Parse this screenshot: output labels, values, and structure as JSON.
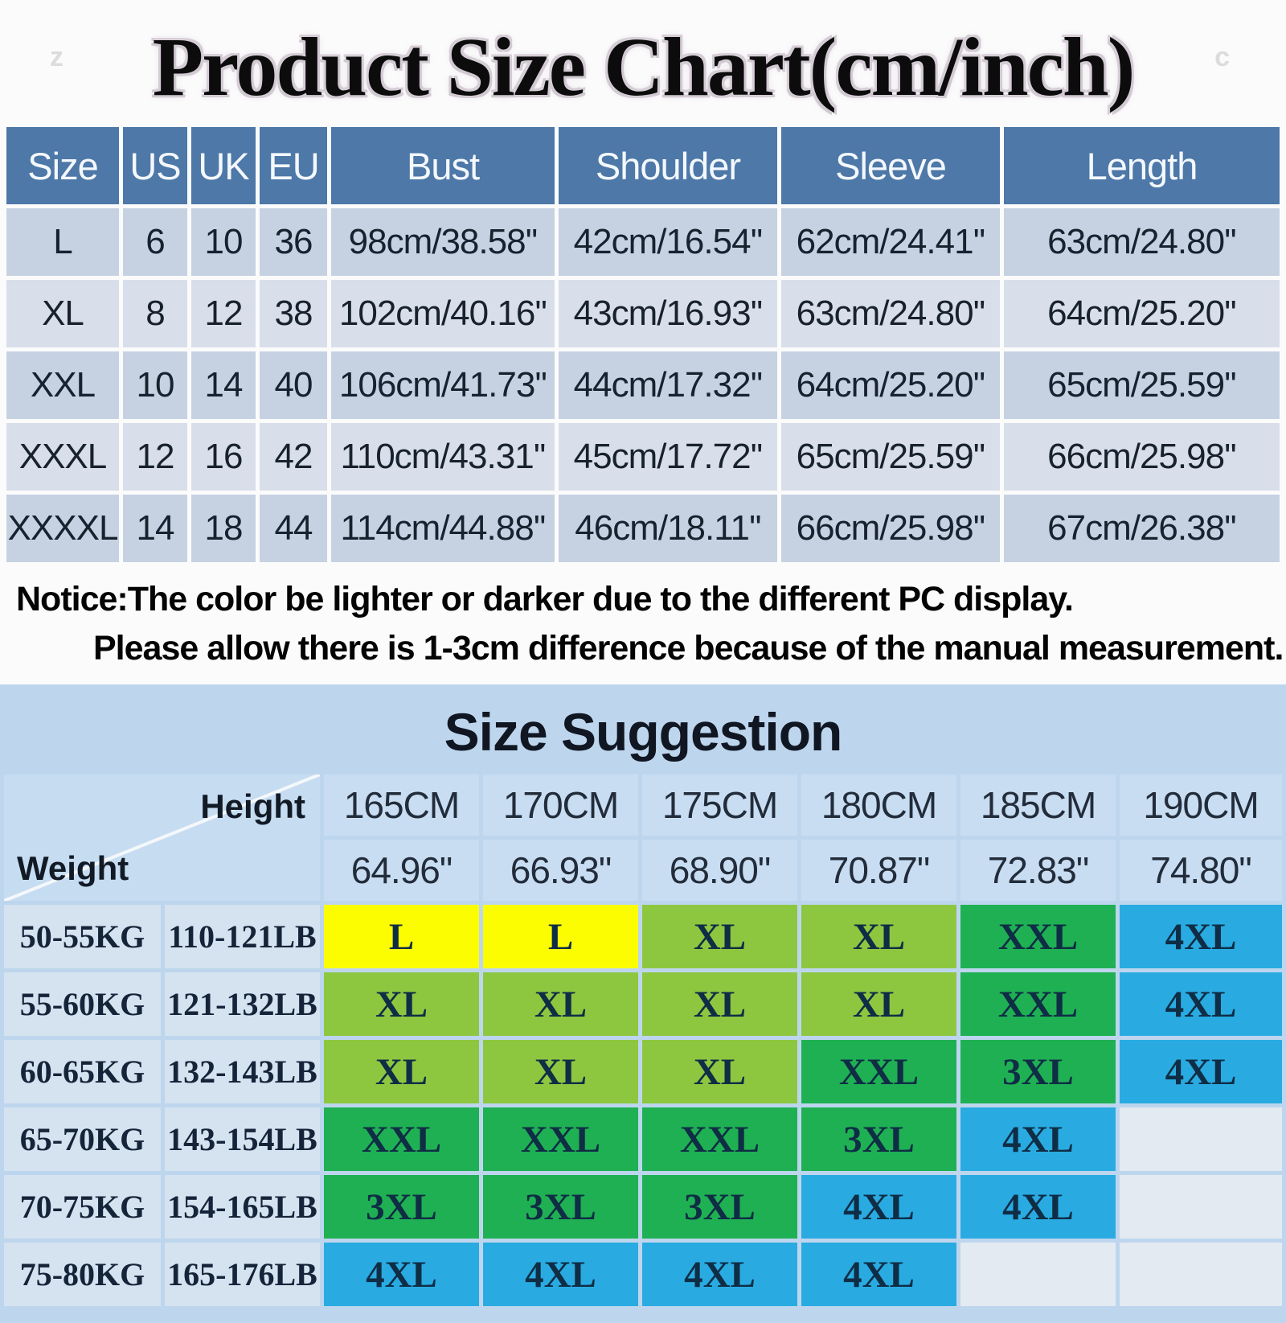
{
  "title": "Product Size Chart(cm/inch)",
  "watermarks": {
    "left": "z",
    "right": "c"
  },
  "size_table": {
    "headers": [
      "Size",
      "US",
      "UK",
      "EU",
      "Bust",
      "Shoulder",
      "Sleeve",
      "Length"
    ],
    "rows": [
      [
        "L",
        "6",
        "10",
        "36",
        "98cm/38.58''",
        "42cm/16.54''",
        "62cm/24.41''",
        "63cm/24.80''"
      ],
      [
        "XL",
        "8",
        "12",
        "38",
        "102cm/40.16''",
        "43cm/16.93''",
        "63cm/24.80''",
        "64cm/25.20''"
      ],
      [
        "XXL",
        "10",
        "14",
        "40",
        "106cm/41.73''",
        "44cm/17.32''",
        "64cm/25.20''",
        "65cm/25.59''"
      ],
      [
        "XXXL",
        "12",
        "16",
        "42",
        "110cm/43.31''",
        "45cm/17.72''",
        "65cm/25.59''",
        "66cm/25.98''"
      ],
      [
        "XXXXL",
        "14",
        "18",
        "44",
        "114cm/44.88''",
        "46cm/18.11''",
        "66cm/25.98''",
        "67cm/26.38''"
      ]
    ]
  },
  "notice": {
    "line1": "Notice:The color be lighter or darker due to the different PC display.",
    "line2": "Please allow there is 1-3cm difference because of the manual measurement."
  },
  "suggestion": {
    "title": "Size Suggestion",
    "corner": {
      "height": "Height",
      "weight": "Weight"
    },
    "columns": [
      {
        "cm": "165CM",
        "inch": "64.96\""
      },
      {
        "cm": "170CM",
        "inch": "66.93\""
      },
      {
        "cm": "175CM",
        "inch": "68.90\""
      },
      {
        "cm": "180CM",
        "inch": "70.87\""
      },
      {
        "cm": "185CM",
        "inch": "72.83\""
      },
      {
        "cm": "190CM",
        "inch": "74.80\""
      }
    ],
    "rows": [
      {
        "kg": "50-55KG",
        "lb": "110-121LB",
        "cells": [
          {
            "label": "L",
            "color": "yellow"
          },
          {
            "label": "L",
            "color": "yellow"
          },
          {
            "label": "XL",
            "color": "lightgreen"
          },
          {
            "label": "XL",
            "color": "lightgreen"
          },
          {
            "label": "XXL",
            "color": "green"
          },
          {
            "label": "4XL",
            "color": "blue"
          }
        ]
      },
      {
        "kg": "55-60KG",
        "lb": "121-132LB",
        "cells": [
          {
            "label": "XL",
            "color": "lightgreen"
          },
          {
            "label": "XL",
            "color": "lightgreen"
          },
          {
            "label": "XL",
            "color": "lightgreen"
          },
          {
            "label": "XL",
            "color": "lightgreen"
          },
          {
            "label": "XXL",
            "color": "green"
          },
          {
            "label": "4XL",
            "color": "blue"
          }
        ]
      },
      {
        "kg": "60-65KG",
        "lb": "132-143LB",
        "cells": [
          {
            "label": "XL",
            "color": "lightgreen"
          },
          {
            "label": "XL",
            "color": "lightgreen"
          },
          {
            "label": "XL",
            "color": "lightgreen"
          },
          {
            "label": "XXL",
            "color": "green"
          },
          {
            "label": "3XL",
            "color": "green"
          },
          {
            "label": "4XL",
            "color": "blue"
          }
        ]
      },
      {
        "kg": "65-70KG",
        "lb": "143-154LB",
        "cells": [
          {
            "label": "XXL",
            "color": "green"
          },
          {
            "label": "XXL",
            "color": "green"
          },
          {
            "label": "XXL",
            "color": "green"
          },
          {
            "label": "3XL",
            "color": "green"
          },
          {
            "label": "4XL",
            "color": "blue"
          },
          {
            "label": "",
            "color": "empty"
          }
        ]
      },
      {
        "kg": "70-75KG",
        "lb": "154-165LB",
        "cells": [
          {
            "label": "3XL",
            "color": "green"
          },
          {
            "label": "3XL",
            "color": "green"
          },
          {
            "label": "3XL",
            "color": "green"
          },
          {
            "label": "4XL",
            "color": "blue"
          },
          {
            "label": "4XL",
            "color": "blue"
          },
          {
            "label": "",
            "color": "empty"
          }
        ]
      },
      {
        "kg": "75-80KG",
        "lb": "165-176LB",
        "cells": [
          {
            "label": "4XL",
            "color": "blue"
          },
          {
            "label": "4XL",
            "color": "blue"
          },
          {
            "label": "4XL",
            "color": "blue"
          },
          {
            "label": "4XL",
            "color": "blue"
          },
          {
            "label": "",
            "color": "empty"
          },
          {
            "label": "",
            "color": "empty"
          }
        ]
      }
    ],
    "palette": {
      "yellow": "#fdfd02",
      "lightgreen": "#8dc740",
      "green": "#1fb053",
      "blue": "#29abe2",
      "empty": "#e3eaf2"
    }
  }
}
